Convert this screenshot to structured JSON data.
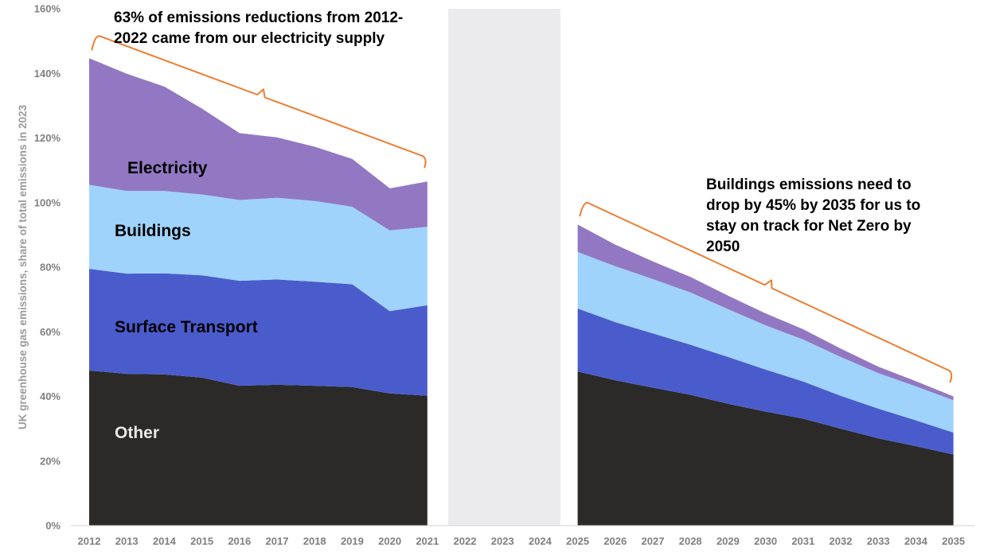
{
  "chart_data": {
    "type": "area",
    "stacked": true,
    "title": "",
    "xlabel": "",
    "ylabel": "UK greenhouse gas emissions, share of total emissions in 2023",
    "ylim": [
      0,
      160
    ],
    "yticks": [
      0,
      20,
      40,
      60,
      80,
      100,
      120,
      140,
      160
    ],
    "ytick_labels": [
      "0%",
      "20%",
      "40%",
      "60%",
      "80%",
      "100%",
      "120%",
      "140%",
      "160%"
    ],
    "categories": [
      "2012",
      "2013",
      "2014",
      "2015",
      "2016",
      "2017",
      "2018",
      "2019",
      "2020",
      "2021",
      "2022",
      "2023",
      "2024",
      "2025",
      "2026",
      "2027",
      "2028",
      "2029",
      "2030",
      "2031",
      "2032",
      "2033",
      "2034",
      "2035"
    ],
    "shaded_period": [
      "2022",
      "2024"
    ],
    "series": [
      {
        "name": "Other",
        "color": "#2b2a29",
        "label_color": "#e8e8e8",
        "values": [
          48,
          47,
          46.8,
          45.8,
          43.3,
          43.6,
          43.3,
          42.9,
          40.9,
          40.2,
          null,
          null,
          null,
          47.7,
          45,
          42.7,
          40.5,
          37.7,
          35.3,
          33.1,
          30,
          27,
          24.6,
          22
        ]
      },
      {
        "name": "Surface Transport",
        "color": "#4a5ccc",
        "label_color": "#000000",
        "values": [
          31.5,
          31,
          31.3,
          31.7,
          32.5,
          32.6,
          32.2,
          31.8,
          25.5,
          28,
          null,
          null,
          null,
          19.5,
          18,
          16.8,
          15.5,
          14.5,
          13,
          11.5,
          10.2,
          9.2,
          8,
          6.8
        ]
      },
      {
        "name": "Buildings",
        "color": "#9fd3fb",
        "label_color": "#000000",
        "values": [
          26,
          25.6,
          25.5,
          25,
          25,
          25.3,
          25,
          24,
          25,
          24.3,
          null,
          null,
          null,
          17.5,
          17.3,
          16.8,
          16.2,
          14.8,
          13.7,
          13,
          12,
          11,
          10.5,
          10
        ]
      },
      {
        "name": "Electricity",
        "color": "#9278c2",
        "label_color": "#000000",
        "values": [
          39.2,
          36.3,
          32.3,
          26.6,
          20.7,
          18.7,
          16.8,
          14.8,
          13,
          14,
          null,
          null,
          null,
          8.5,
          6.7,
          5.5,
          4.8,
          4.2,
          3.7,
          3.2,
          2.6,
          2,
          1.6,
          1.2
        ]
      }
    ],
    "annotations": [
      {
        "text": [
          "63% of emissions reductions from 2012-",
          "2022 came from our electricity supply"
        ],
        "bracket_from": "2012",
        "bracket_to": "2021",
        "bracket_color": "#ed7d31"
      },
      {
        "text": [
          "Buildings emissions need to",
          "drop by 45% by 2035 for us to",
          "stay on track for Net Zero by",
          "2050"
        ],
        "bracket_from": "2025",
        "bracket_to": "2035",
        "bracket_color": "#ed7d31"
      }
    ],
    "legend": "inline-labels",
    "grid": false
  }
}
